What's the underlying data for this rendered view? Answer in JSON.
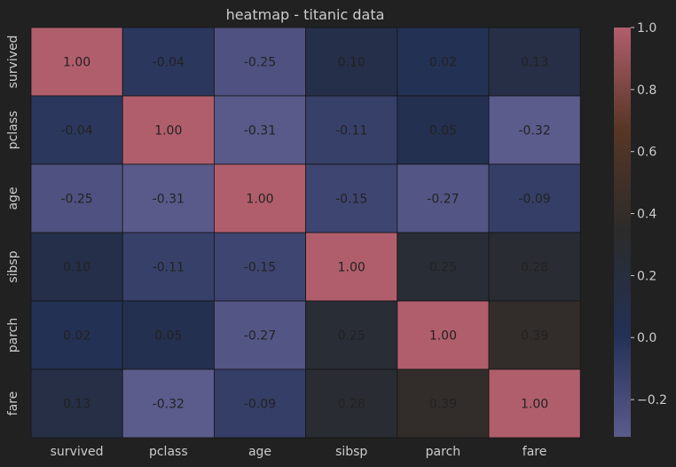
{
  "chart_data": {
    "type": "heatmap",
    "title": "heatmap - titanic data",
    "xlabel": "",
    "ylabel": "",
    "x_categories": [
      "survived",
      "pclass",
      "age",
      "sibsp",
      "parch",
      "fare"
    ],
    "y_categories": [
      "survived",
      "pclass",
      "age",
      "sibsp",
      "parch",
      "fare"
    ],
    "values": [
      [
        1.0,
        -0.04,
        -0.25,
        0.1,
        0.02,
        0.13
      ],
      [
        -0.04,
        1.0,
        -0.31,
        -0.11,
        0.05,
        -0.32
      ],
      [
        -0.25,
        -0.31,
        1.0,
        -0.15,
        -0.27,
        -0.09
      ],
      [
        0.1,
        -0.11,
        -0.15,
        1.0,
        0.25,
        0.28
      ],
      [
        0.02,
        0.05,
        -0.27,
        0.25,
        1.0,
        0.39
      ],
      [
        0.13,
        -0.32,
        -0.09,
        0.28,
        0.39,
        1.0
      ]
    ],
    "value_format": "0.00",
    "colorbar": {
      "range": [
        -0.32,
        1.0
      ],
      "ticks": [
        -0.2,
        0.0,
        0.2,
        0.4,
        0.6,
        0.8,
        1.0
      ],
      "tick_labels": [
        "−0.2",
        "0.0",
        "0.2",
        "0.4",
        "0.6",
        "0.8",
        "1.0"
      ]
    },
    "colormap": [
      "#5b5b8c",
      "#233155",
      "#2b2b2b",
      "#573626",
      "#b15e6c"
    ],
    "grid": false
  },
  "colors": {
    "background": "#212121",
    "text": "#cccccc",
    "cell_text": "#222222",
    "cell_border": "#151515"
  }
}
